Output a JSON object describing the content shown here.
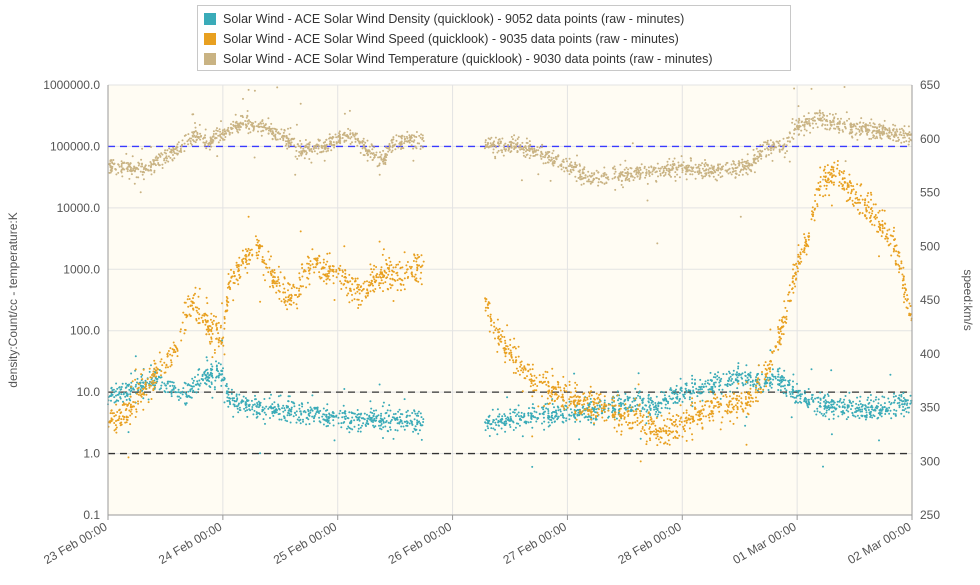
{
  "chart_data": {
    "type": "scatter",
    "title": "",
    "legend": {
      "placement": "top-center",
      "entries": [
        "Solar Wind - ACE Solar Wind Density (quicklook) - 9052 data points (raw - minutes)",
        "Solar Wind - ACE Solar Wind Speed (quicklook) - 9035 data points (raw - minutes)",
        "Solar Wind - ACE Solar Wind Temperature (quicklook) - 9030 data points (raw - minutes)"
      ]
    },
    "y_left": {
      "label": "density:Count/cc - temperature:K",
      "scale": "log",
      "range": [
        0.1,
        1000000
      ],
      "ticks": [
        "1000000.0",
        "100000.0",
        "10000.0",
        "1000.0",
        "100.0",
        "10.0",
        "1.0",
        "0.1"
      ]
    },
    "y_right": {
      "label": "speed:km/s",
      "scale": "linear",
      "range": [
        250,
        650
      ],
      "ticks": [
        "650",
        "600",
        "550",
        "500",
        "450",
        "400",
        "350",
        "300",
        "250"
      ]
    },
    "x": {
      "unit": "days since 23 Feb 00:00",
      "range": [
        0,
        7
      ],
      "ticks": [
        "23 Feb 00:00",
        "24 Feb 00:00",
        "25 Feb 00:00",
        "26 Feb 00:00",
        "27 Feb 00:00",
        "28 Feb 00:00",
        "01 Mar 00:00",
        "02 Mar 00:00"
      ]
    },
    "reference_lines": [
      {
        "axis": "left",
        "value": 100000,
        "color": "#3a3aff",
        "style": "dashed"
      },
      {
        "axis": "left",
        "value": 10,
        "color": "#333333",
        "style": "dashed"
      },
      {
        "axis": "left",
        "value": 1,
        "color": "#333333",
        "style": "dashed"
      }
    ],
    "grid": true,
    "data_gap": [
      2.75,
      3.28
    ],
    "series": [
      {
        "name": "Solar Wind - ACE Solar Wind Density (quicklook) - 9052 data points (raw - minutes)",
        "color": "#3aabb8",
        "axis": "left",
        "points": [
          [
            0,
            8
          ],
          [
            0.2,
            12
          ],
          [
            0.4,
            15
          ],
          [
            0.6,
            10
          ],
          [
            0.7,
            9
          ],
          [
            0.8,
            18
          ],
          [
            1.0,
            20
          ],
          [
            1.05,
            8
          ],
          [
            1.3,
            5.5
          ],
          [
            1.6,
            5
          ],
          [
            1.9,
            4
          ],
          [
            2.2,
            3.5
          ],
          [
            2.5,
            3.5
          ],
          [
            2.75,
            3
          ],
          [
            3.28,
            3
          ],
          [
            3.6,
            4
          ],
          [
            4.0,
            4.5
          ],
          [
            4.3,
            5
          ],
          [
            4.5,
            7
          ],
          [
            4.8,
            6
          ],
          [
            5.0,
            10
          ],
          [
            5.2,
            12
          ],
          [
            5.5,
            18
          ],
          [
            5.7,
            15
          ],
          [
            5.85,
            17
          ],
          [
            6.0,
            8
          ],
          [
            6.3,
            6
          ],
          [
            6.6,
            5
          ],
          [
            6.8,
            5.5
          ],
          [
            7.0,
            7
          ]
        ]
      },
      {
        "name": "Solar Wind - ACE Solar Wind Speed (quicklook) - 9035 data points (raw - minutes)",
        "color": "#e8a020",
        "axis": "right",
        "points": [
          [
            0,
            335
          ],
          [
            0.15,
            345
          ],
          [
            0.3,
            365
          ],
          [
            0.5,
            390
          ],
          [
            0.6,
            405
          ],
          [
            0.65,
            430
          ],
          [
            0.75,
            450
          ],
          [
            0.85,
            430
          ],
          [
            1.0,
            410
          ],
          [
            1.05,
            465
          ],
          [
            1.2,
            490
          ],
          [
            1.3,
            500
          ],
          [
            1.4,
            475
          ],
          [
            1.6,
            450
          ],
          [
            1.7,
            475
          ],
          [
            1.8,
            480
          ],
          [
            2.0,
            475
          ],
          [
            2.2,
            455
          ],
          [
            2.4,
            475
          ],
          [
            2.6,
            470
          ],
          [
            2.75,
            485
          ],
          [
            3.28,
            450
          ],
          [
            3.4,
            415
          ],
          [
            3.7,
            375
          ],
          [
            4.0,
            360
          ],
          [
            4.3,
            350
          ],
          [
            4.6,
            340
          ],
          [
            4.85,
            325
          ],
          [
            5.0,
            335
          ],
          [
            5.2,
            348
          ],
          [
            5.5,
            355
          ],
          [
            5.6,
            360
          ],
          [
            5.7,
            375
          ],
          [
            5.8,
            400
          ],
          [
            6.0,
            480
          ],
          [
            6.1,
            510
          ],
          [
            6.2,
            560
          ],
          [
            6.35,
            570
          ],
          [
            6.5,
            545
          ],
          [
            6.7,
            525
          ],
          [
            6.85,
            500
          ],
          [
            6.95,
            455
          ],
          [
            7.0,
            430
          ]
        ]
      },
      {
        "name": "Solar Wind - ACE Solar Wind Temperature (quicklook) - 9030 data points (raw - minutes)",
        "color": "#c9b383",
        "axis": "left",
        "points": [
          [
            0,
            50000
          ],
          [
            0.3,
            40000
          ],
          [
            0.5,
            70000
          ],
          [
            0.6,
            90000
          ],
          [
            0.75,
            150000
          ],
          [
            0.9,
            120000
          ],
          [
            1.0,
            150000
          ],
          [
            1.2,
            250000
          ],
          [
            1.35,
            200000
          ],
          [
            1.5,
            150000
          ],
          [
            1.7,
            80000
          ],
          [
            1.9,
            100000
          ],
          [
            2.1,
            150000
          ],
          [
            2.3,
            70000
          ],
          [
            2.4,
            60000
          ],
          [
            2.5,
            120000
          ],
          [
            2.75,
            120000
          ],
          [
            3.28,
            110000
          ],
          [
            3.6,
            100000
          ],
          [
            3.9,
            60000
          ],
          [
            4.2,
            30000
          ],
          [
            4.5,
            35000
          ],
          [
            4.8,
            40000
          ],
          [
            5.0,
            45000
          ],
          [
            5.4,
            40000
          ],
          [
            5.6,
            50000
          ],
          [
            5.7,
            90000
          ],
          [
            5.9,
            100000
          ],
          [
            6.0,
            200000
          ],
          [
            6.2,
            300000
          ],
          [
            6.4,
            200000
          ],
          [
            6.7,
            180000
          ],
          [
            6.9,
            150000
          ],
          [
            7.0,
            150000
          ]
        ]
      }
    ]
  }
}
